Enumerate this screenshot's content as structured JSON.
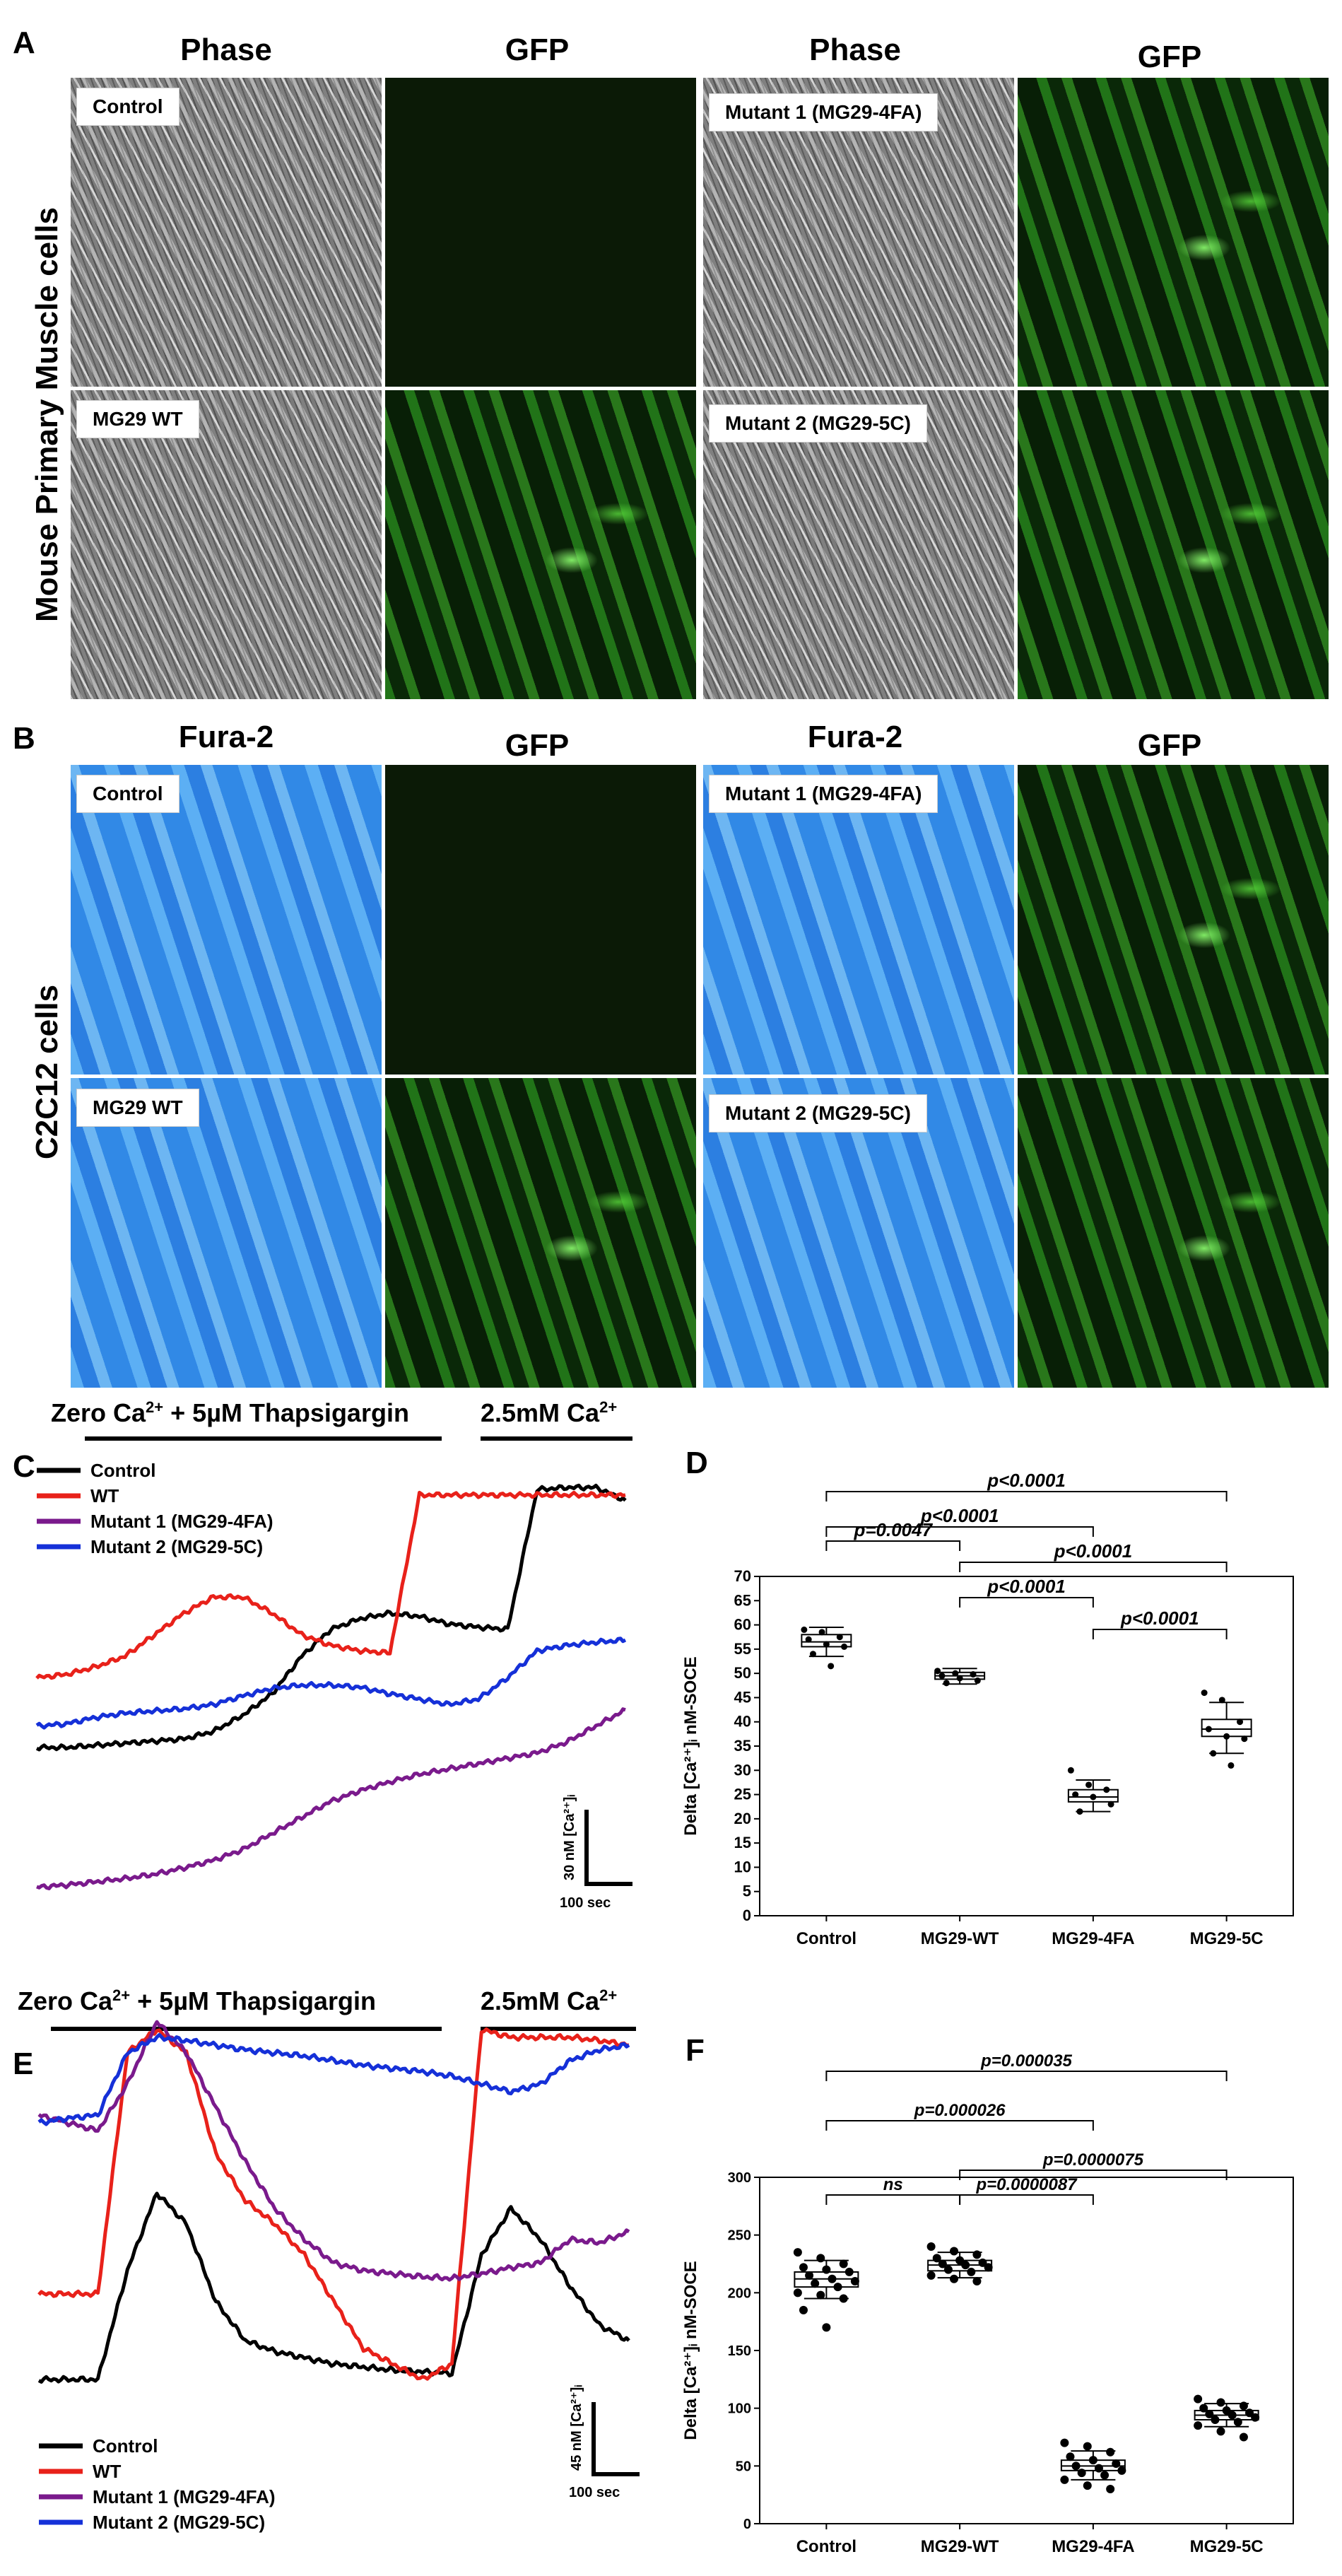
{
  "panel_a": {
    "letter": "A",
    "side_label": "Mouse Primary Muscle cells",
    "col_phase": "Phase",
    "col_gfp": "GFP",
    "labels": {
      "control": "Control",
      "wt": "MG29 WT",
      "m1": "Mutant 1 (MG29-4FA)",
      "m2": "Mutant 2 (MG29-5C)"
    }
  },
  "panel_b": {
    "letter": "B",
    "side_label": "C2C12 cells",
    "col_fura": "Fura-2",
    "col_gfp": "GFP",
    "labels": {
      "control": "Control",
      "wt": "MG29 WT",
      "m1": "Mutant 1 (MG29-4FA)",
      "m2": "Mutant 2 (MG29-5C)"
    }
  },
  "panel_c": {
    "letter": "C",
    "cond1": "Zero Ca",
    "cond1_sup": "2+",
    "cond1_rest": " + 5µM Thapsigargin",
    "cond2": "2.5mM Ca",
    "cond2_sup": "2+",
    "legend": [
      "Control",
      "WT",
      "Mutant 1 (MG29-4FA)",
      "Mutant 2 (MG29-5C)"
    ],
    "scale_y": "30 nM [Ca²⁺]ᵢ",
    "scale_x": "100 sec"
  },
  "panel_e": {
    "letter": "E",
    "cond1": "Zero Ca",
    "cond1_sup": "2+",
    "cond1_rest": " + 5µM Thapsigargin",
    "cond2": "2.5mM Ca",
    "cond2_sup": "2+",
    "legend": [
      "Control",
      "WT",
      "Mutant 1 (MG29-4FA)",
      "Mutant 2 (MG29-5C)"
    ],
    "scale_y": "45 nM [Ca²⁺]ᵢ",
    "scale_x": "100 sec"
  },
  "colors": {
    "control": "#000000",
    "wt": "#e8211a",
    "m1": "#7a1a8c",
    "m2": "#1530d8"
  },
  "chart_data": [
    {
      "id": "D",
      "type": "box",
      "letter": "D",
      "ylabel": "Delta [Ca²⁺]ᵢ nM-SOCE",
      "ylim": [
        0,
        70
      ],
      "yticks": [
        0,
        5,
        10,
        15,
        20,
        25,
        30,
        35,
        40,
        45,
        50,
        55,
        60,
        65,
        70
      ],
      "categories": [
        "Control",
        "MG29-WT",
        "MG29-4FA",
        "MG29-5C"
      ],
      "boxes": [
        {
          "q1": 55.5,
          "median": 56.5,
          "q3": 58,
          "whisker_low": 53.5,
          "whisker_high": 59.5,
          "points": [
            59,
            58.5,
            57.5,
            57,
            56,
            55.5,
            54,
            51.5
          ]
        },
        {
          "q1": 48.8,
          "median": 49.5,
          "q3": 50.2,
          "whisker_low": 47.8,
          "whisker_high": 51,
          "points": [
            50.5,
            50,
            49.8,
            49.5,
            49,
            48.5,
            48
          ]
        },
        {
          "q1": 23.5,
          "median": 24.5,
          "q3": 26,
          "whisker_low": 21.5,
          "whisker_high": 28,
          "points": [
            30,
            27,
            26,
            25,
            24.5,
            23,
            21.5
          ]
        },
        {
          "q1": 37,
          "median": 38.5,
          "q3": 40.5,
          "whisker_low": 33.5,
          "whisker_high": 44,
          "points": [
            46,
            44.5,
            40,
            38.5,
            37,
            36.5,
            33.5,
            31
          ]
        }
      ],
      "comparisons": [
        {
          "from": 0,
          "to": 3,
          "label": "p<0.0001"
        },
        {
          "from": 0,
          "to": 2,
          "label": "p<0.0001"
        },
        {
          "from": 1,
          "to": 3,
          "label": "p<0.0001"
        },
        {
          "from": 0,
          "to": 1,
          "label": "p=0.0047"
        },
        {
          "from": 1,
          "to": 2,
          "label": "p<0.0001"
        },
        {
          "from": 2,
          "to": 3,
          "label": "p<0.0001"
        }
      ]
    },
    {
      "id": "F",
      "type": "box",
      "letter": "F",
      "ylabel": "Delta [Ca²⁺]ᵢ nM-SOCE",
      "ylim": [
        0,
        300
      ],
      "yticks": [
        0,
        50,
        100,
        150,
        200,
        250,
        300
      ],
      "categories": [
        "Control",
        "MG29-WT",
        "MG29-4FA",
        "MG29-5C"
      ],
      "boxes": [
        {
          "q1": 205,
          "median": 212,
          "q3": 218,
          "whisker_low": 195,
          "whisker_high": 228,
          "points": [
            235,
            230,
            225,
            222,
            220,
            218,
            215,
            212,
            210,
            208,
            205,
            200,
            198,
            195,
            185,
            170
          ]
        },
        {
          "q1": 219,
          "median": 224,
          "q3": 228,
          "whisker_low": 213,
          "whisker_high": 235,
          "points": [
            240,
            236,
            233,
            230,
            228,
            226,
            225,
            224,
            222,
            220,
            218,
            215,
            212,
            210
          ]
        },
        {
          "q1": 46,
          "median": 50,
          "q3": 55,
          "whisker_low": 38,
          "whisker_high": 63,
          "points": [
            70,
            67,
            62,
            58,
            55,
            52,
            50,
            48,
            46,
            44,
            42,
            38,
            33,
            30
          ]
        },
        {
          "q1": 90,
          "median": 94,
          "q3": 98,
          "whisker_low": 84,
          "whisker_high": 104,
          "points": [
            108,
            105,
            102,
            100,
            98,
            96,
            95,
            94,
            92,
            90,
            88,
            85,
            80,
            75
          ]
        }
      ],
      "comparisons": [
        {
          "from": 0,
          "to": 3,
          "label": "p=0.000035"
        },
        {
          "from": 0,
          "to": 2,
          "label": "p=0.000026"
        },
        {
          "from": 1,
          "to": 3,
          "label": "p=0.0000075"
        },
        {
          "from": 0,
          "to": 1,
          "label": "ns"
        },
        {
          "from": 1,
          "to": 2,
          "label": "p=0.0000087"
        }
      ]
    },
    {
      "id": "C",
      "type": "line",
      "series": [
        {
          "name": "Control",
          "color_key": "control",
          "y": [
            150,
            150,
            152,
            154,
            156,
            158,
            165,
            180,
            200,
            235,
            260,
            270,
            275,
            272,
            265,
            262,
            260,
            390,
            392,
            392,
            380
          ]
        },
        {
          "name": "WT",
          "color_key": "wt",
          "y": [
            215,
            218,
            225,
            235,
            255,
            275,
            290,
            290,
            275,
            255,
            245,
            240,
            238,
            385,
            385,
            385,
            385,
            385,
            385,
            385,
            385
          ]
        },
        {
          "name": "Mutant 1 (MG29-4FA)",
          "color_key": "m1",
          "y": [
            20,
            22,
            25,
            28,
            32,
            38,
            45,
            55,
            70,
            85,
            100,
            110,
            118,
            125,
            130,
            135,
            140,
            145,
            155,
            170,
            185
          ]
        },
        {
          "name": "Mutant 2 (MG29-5C)",
          "color_key": "m2",
          "y": [
            170,
            172,
            178,
            182,
            184,
            186,
            190,
            198,
            205,
            208,
            208,
            206,
            200,
            195,
            190,
            195,
            215,
            240,
            245,
            248,
            250
          ]
        }
      ]
    },
    {
      "id": "E",
      "type": "line",
      "series": [
        {
          "name": "Control",
          "color_key": "control",
          "y": [
            20,
            20,
            20,
            90,
            140,
            120,
            70,
            45,
            38,
            34,
            30,
            28,
            26,
            25,
            24,
            100,
            130,
            110,
            80,
            55,
            45
          ]
        },
        {
          "name": "WT",
          "color_key": "wt",
          "y": [
            75,
            75,
            75,
            230,
            245,
            230,
            165,
            135,
            120,
            100,
            70,
            40,
            30,
            20,
            30,
            245,
            240,
            240,
            240,
            238,
            235
          ]
        },
        {
          "name": "Mutant 1 (MG29-4FA)",
          "color_key": "m1",
          "y": [
            190,
            185,
            180,
            210,
            250,
            230,
            195,
            160,
            130,
            110,
            95,
            90,
            88,
            86,
            85,
            88,
            92,
            95,
            110,
            108,
            115
          ]
        },
        {
          "name": "Mutant 2 (MG29-5C)",
          "color_key": "m2",
          "y": [
            185,
            188,
            190,
            230,
            240,
            238,
            235,
            232,
            230,
            228,
            225,
            222,
            220,
            218,
            215,
            210,
            205,
            210,
            225,
            232,
            235
          ]
        }
      ]
    }
  ]
}
